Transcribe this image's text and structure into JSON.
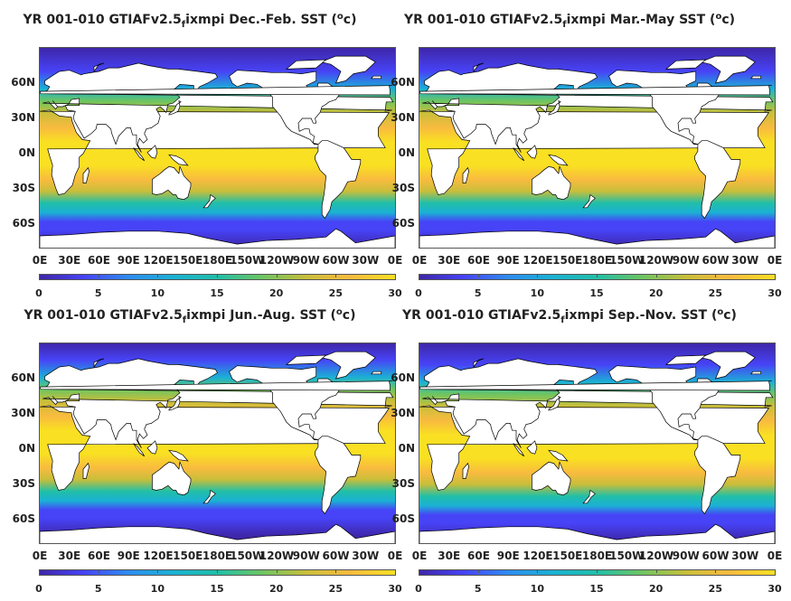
{
  "panels": [
    {
      "title_pre": "YR 001-010 GTIAFv2.5",
      "title_sub": "f",
      "title_mid": "ixmpi Dec.-Feb. SST (",
      "title_sup": "o",
      "title_post": "c)"
    },
    {
      "title_pre": "YR 001-010 GTIAFv2.5",
      "title_sub": "f",
      "title_mid": "ixmpi Mar.-May SST (",
      "title_sup": "o",
      "title_post": "c)"
    },
    {
      "title_pre": "YR 001-010 GTIAFv2.5",
      "title_sub": "f",
      "title_mid": "ixmpi Jun.-Aug. SST (",
      "title_sup": "o",
      "title_post": "c)"
    },
    {
      "title_pre": "YR 001-010 GTIAFv2.5",
      "title_sub": "f",
      "title_mid": "ixmpi Sep.-Nov. SST (",
      "title_sup": "o",
      "title_post": "c)"
    }
  ],
  "lat_labels": [
    "60N",
    "30N",
    "0N",
    "30S",
    "60S"
  ],
  "lat_values": [
    60,
    30,
    0,
    -30,
    -60
  ],
  "lon_labels": [
    "0E",
    "30E",
    "60E",
    "90E",
    "120E",
    "150E",
    "180E",
    "150W",
    "120W",
    "90W",
    "60W",
    "30W",
    "0E"
  ],
  "lon_values": [
    0,
    30,
    60,
    90,
    120,
    150,
    180,
    210,
    240,
    270,
    300,
    330,
    360
  ],
  "lat_range": [
    -80,
    90
  ],
  "colorbar_ticks": [
    "0",
    "5",
    "10",
    "15",
    "20",
    "25",
    "30"
  ],
  "colorbar_values": [
    0,
    5,
    10,
    15,
    20,
    25,
    30
  ],
  "colormap": [
    "#3e26a8",
    "#4743f7",
    "#2d8cf0",
    "#1bb1d4",
    "#21bfa7",
    "#6cc562",
    "#c8be3a",
    "#f9bb3f",
    "#f9e022"
  ],
  "land_color": "#ffffff"
}
